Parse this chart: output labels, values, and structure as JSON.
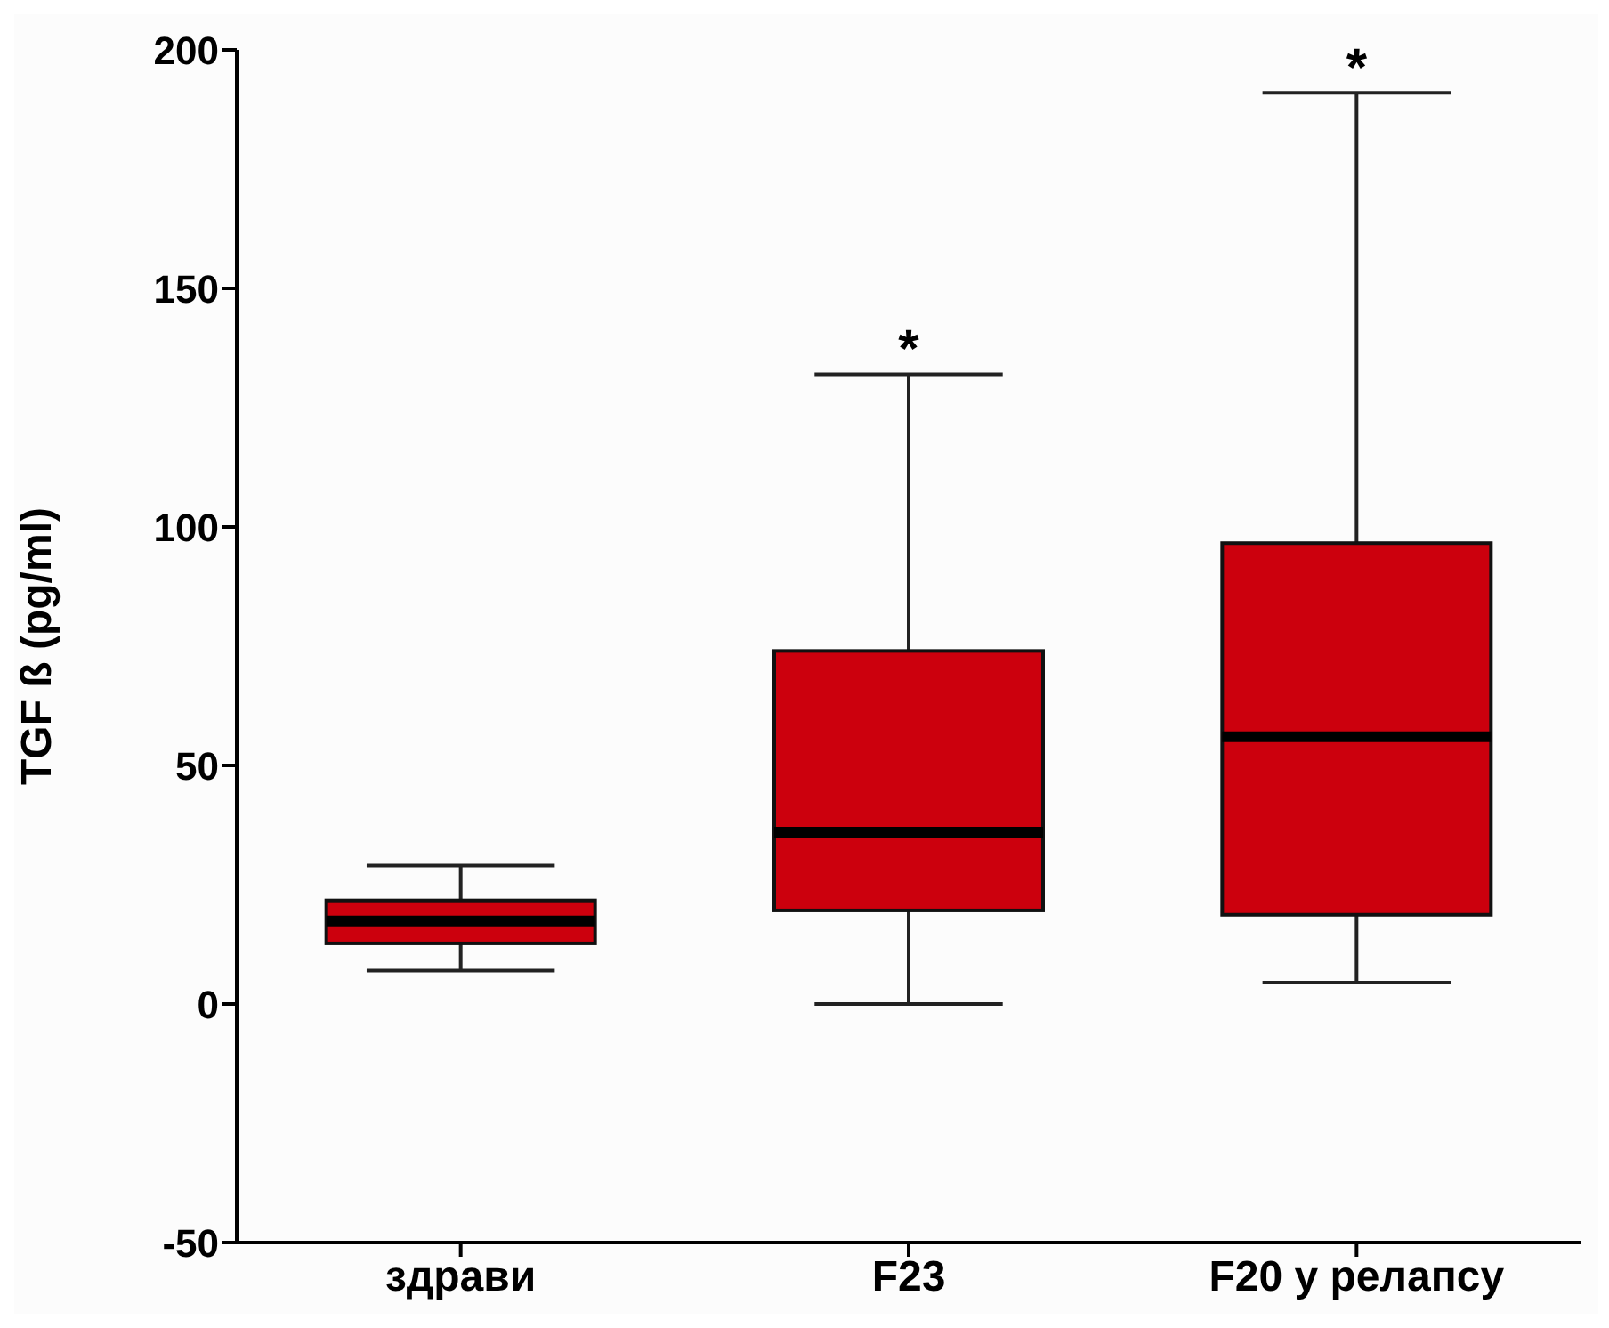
{
  "chart_data": {
    "type": "box",
    "ylabel": "TGF ß (pg/ml)",
    "categories": [
      "здрави",
      "F23",
      "F20 у релапсу"
    ],
    "series": [
      {
        "color": "#cc000d",
        "boxes": [
          {
            "low": 7,
            "q1": 12.7,
            "median": 17.4,
            "q3": 21.7,
            "high": 29
          },
          {
            "low": 0,
            "q1": 19.6,
            "median": 36,
            "q3": 74,
            "high": 132
          },
          {
            "low": 4.5,
            "q1": 18.7,
            "median": 56,
            "q3": 96.6,
            "high": 191
          }
        ]
      }
    ],
    "ylim": [
      -50,
      200
    ],
    "yticks": [
      -50,
      0,
      50,
      100,
      150,
      200
    ],
    "annotations": [
      {
        "text": "*",
        "x": "F23",
        "y": 132
      },
      {
        "text": "*",
        "x": "F20 у релапсу",
        "y": 191
      }
    ]
  }
}
